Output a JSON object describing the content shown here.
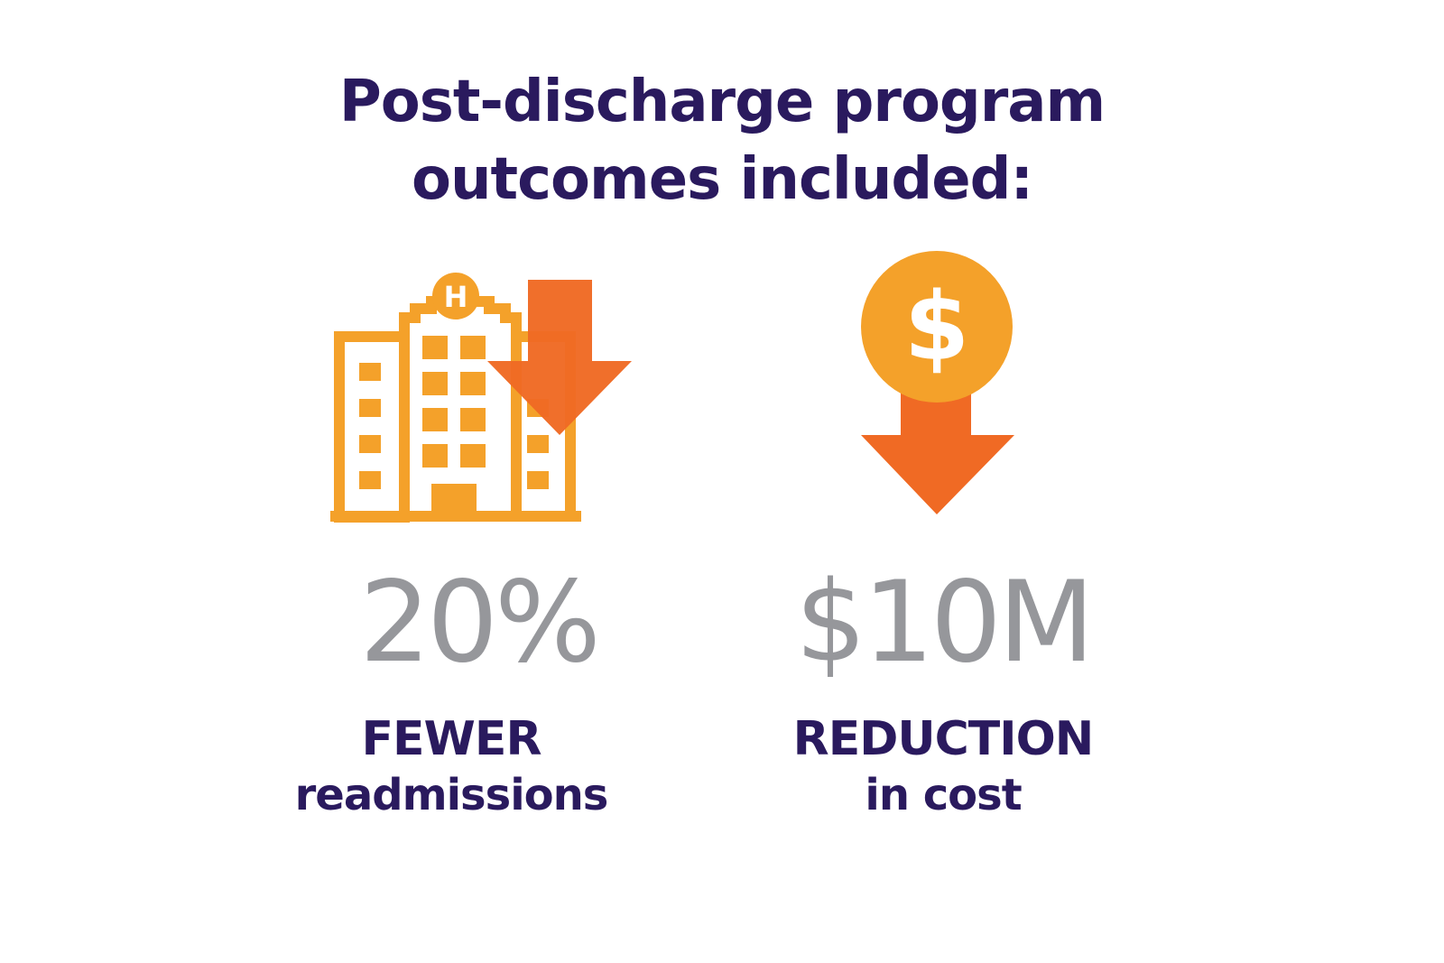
{
  "title": {
    "line1": "Post-discharge program",
    "line2": "outcomes included:"
  },
  "colors": {
    "title": "#2a1a5e",
    "value": "#96979b",
    "icon_orange": "#f4a12a",
    "arrow_orange": "#f06a24"
  },
  "stats": [
    {
      "icon": "hospital-down-arrow-icon",
      "value": "20%",
      "label_upper": "FEWER",
      "label_lower": "readmissions"
    },
    {
      "icon": "dollar-coin-down-arrow-icon",
      "value": "$10M",
      "label_upper": "REDUCTION",
      "label_lower": "in cost"
    }
  ],
  "icons": {
    "hospital_sign_letter": "H",
    "coin_symbol": "$"
  }
}
